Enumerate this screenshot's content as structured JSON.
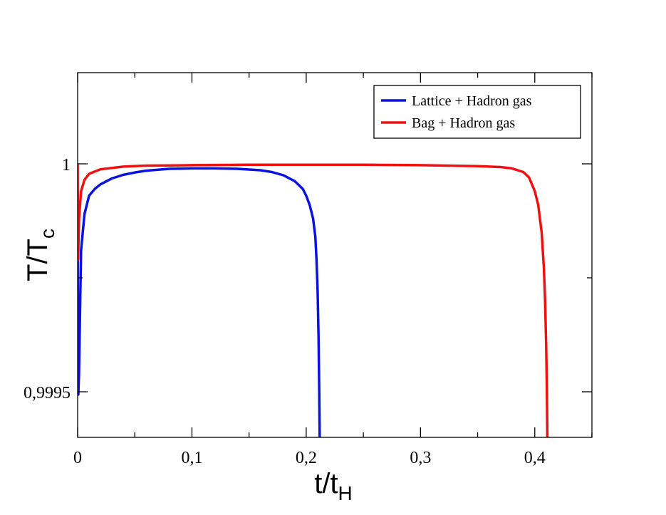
{
  "chart_data": {
    "type": "line",
    "title": "",
    "xlabel": {
      "main": "t/t",
      "sub": "H"
    },
    "ylabel": {
      "main": "T/T",
      "sub": "c"
    },
    "xlim": [
      0,
      0.45
    ],
    "ylim": [
      0.9994,
      1.0002
    ],
    "x_ticks": [
      {
        "value": 0,
        "label": "0"
      },
      {
        "value": 0.1,
        "label": "0,1"
      },
      {
        "value": 0.2,
        "label": "0,2"
      },
      {
        "value": 0.3,
        "label": "0,3"
      },
      {
        "value": 0.4,
        "label": "0,4"
      }
    ],
    "y_ticks": [
      {
        "value": 0.9995,
        "label": "0,9995"
      },
      {
        "value": 1.0,
        "label": "1"
      }
    ],
    "grid": false,
    "legend_position": "top-right",
    "series": [
      {
        "name": "Lattice + Hadron gas",
        "color": "#0a12e0",
        "points": [
          [
            0,
            0.99994
          ],
          [
            0.0001,
            0.99977
          ],
          [
            0.0003,
            0.99958
          ],
          [
            0.0006,
            0.999494
          ],
          [
            0.0012,
            0.99954
          ],
          [
            0.003,
            0.99981
          ],
          [
            0.006,
            0.99989
          ],
          [
            0.01,
            0.99993
          ],
          [
            0.015,
            0.999945
          ],
          [
            0.02,
            0.999955
          ],
          [
            0.03,
            0.999968
          ],
          [
            0.04,
            0.999976
          ],
          [
            0.05,
            0.999981
          ],
          [
            0.06,
            0.999985
          ],
          [
            0.08,
            0.999989
          ],
          [
            0.1,
            0.99999
          ],
          [
            0.12,
            0.99999
          ],
          [
            0.14,
            0.999989
          ],
          [
            0.16,
            0.999986
          ],
          [
            0.17,
            0.999982
          ],
          [
            0.18,
            0.999975
          ],
          [
            0.19,
            0.999962
          ],
          [
            0.197,
            0.999945
          ],
          [
            0.2,
            0.99993
          ],
          [
            0.203,
            0.99991
          ],
          [
            0.206,
            0.99988
          ],
          [
            0.208,
            0.99984
          ],
          [
            0.209,
            0.99979
          ],
          [
            0.21,
            0.99972
          ],
          [
            0.2108,
            0.99962
          ],
          [
            0.2114,
            0.9995
          ],
          [
            0.2118,
            0.9994
          ]
        ]
      },
      {
        "name": "Bag + Hadron gas",
        "color": "#ee1111",
        "points": [
          [
            0,
            0.999998
          ],
          [
            0.0001,
            0.99993
          ],
          [
            0.0004,
            0.99979
          ],
          [
            0.0012,
            0.99988
          ],
          [
            0.003,
            0.99994
          ],
          [
            0.006,
            0.999965
          ],
          [
            0.01,
            0.999978
          ],
          [
            0.02,
            0.999988
          ],
          [
            0.04,
            0.999994
          ],
          [
            0.06,
            0.999996
          ],
          [
            0.1,
            0.999997
          ],
          [
            0.15,
            0.999998
          ],
          [
            0.2,
            0.999998
          ],
          [
            0.25,
            0.999998
          ],
          [
            0.3,
            0.999997
          ],
          [
            0.35,
            0.999995
          ],
          [
            0.37,
            0.999993
          ],
          [
            0.38,
            0.99999
          ],
          [
            0.39,
            0.999982
          ],
          [
            0.395,
            0.99997
          ],
          [
            0.4,
            0.99994
          ],
          [
            0.403,
            0.99991
          ],
          [
            0.406,
            0.99985
          ],
          [
            0.408,
            0.99977
          ],
          [
            0.409,
            0.9997
          ],
          [
            0.41,
            0.9996
          ],
          [
            0.4106,
            0.9995
          ],
          [
            0.411,
            0.9994
          ]
        ]
      }
    ]
  }
}
